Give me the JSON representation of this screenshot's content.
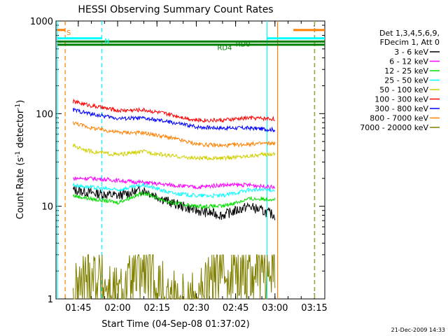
{
  "chart_data": {
    "type": "line",
    "title": "HESSI Observing Summary Count Rates",
    "xlabel": "Start Time (04-Sep-08 01:37:02)",
    "ylabel": "Count Rate (s",
    "ylabel_sup": "-1",
    "ylabel_tail": " detector",
    "ylabel_sup2": "-1",
    "ylabel_close": ")",
    "yscale": "log",
    "ylim": [
      1,
      1000
    ],
    "xlim": [
      "01:37:02",
      "03:19:00"
    ],
    "xticks": [
      "01:45",
      "02:00",
      "02:15",
      "02:30",
      "02:45",
      "03:00",
      "03:15"
    ],
    "yticks": [
      "1",
      "10",
      "100",
      "1000"
    ],
    "legend": {
      "placement": "right",
      "header": [
        "Det 1,3,4,5,6,9,",
        "FDecim 1, Att 0"
      ]
    },
    "series": [
      {
        "name": "3 - 6 keV",
        "color": "#000000",
        "x": [
          "01:43",
          "01:50",
          "02:00",
          "02:10",
          "02:20",
          "02:30",
          "02:40",
          "02:50",
          "03:00"
        ],
        "y": [
          15,
          14,
          13,
          15,
          11,
          9,
          8,
          10,
          8
        ]
      },
      {
        "name": "6 - 12 keV",
        "color": "#ff00ff",
        "x": [
          "01:43",
          "01:50",
          "02:00",
          "02:10",
          "02:20",
          "02:30",
          "02:40",
          "02:50",
          "03:00"
        ],
        "y": [
          20,
          20,
          19,
          18,
          17,
          16,
          17,
          17,
          16
        ]
      },
      {
        "name": "12 - 25 keV",
        "color": "#00e000",
        "x": [
          "01:43",
          "01:50",
          "02:00",
          "02:10",
          "02:20",
          "02:30",
          "02:40",
          "02:50",
          "03:00"
        ],
        "y": [
          13,
          12,
          11,
          14,
          11,
          10,
          10,
          12,
          12
        ]
      },
      {
        "name": "25 - 50 keV",
        "color": "#00ffff",
        "x": [
          "01:43",
          "01:50",
          "02:00",
          "02:10",
          "02:20",
          "02:30",
          "02:40",
          "02:50",
          "03:00"
        ],
        "y": [
          17,
          16,
          15,
          17,
          14,
          13,
          13,
          15,
          15
        ]
      },
      {
        "name": "50 - 100 keV",
        "color": "#d0d000",
        "x": [
          "01:43",
          "01:50",
          "02:00",
          "02:10",
          "02:20",
          "02:30",
          "02:40",
          "02:50",
          "03:00"
        ],
        "y": [
          45,
          39,
          36,
          39,
          35,
          33,
          33,
          35,
          37
        ]
      },
      {
        "name": "100 - 300 keV",
        "color": "#ff0000",
        "x": [
          "01:43",
          "01:50",
          "02:00",
          "02:10",
          "02:20",
          "02:30",
          "02:40",
          "02:50",
          "03:00"
        ],
        "y": [
          135,
          122,
          108,
          110,
          98,
          85,
          85,
          90,
          88
        ]
      },
      {
        "name": "300 - 800 keV",
        "color": "#0000ff",
        "x": [
          "01:43",
          "01:50",
          "02:00",
          "02:10",
          "02:20",
          "02:30",
          "02:40",
          "02:50",
          "03:00"
        ],
        "y": [
          110,
          99,
          89,
          89,
          81,
          72,
          70,
          70,
          67
        ]
      },
      {
        "name": "800 - 7000 keV",
        "color": "#ff8000",
        "x": [
          "01:43",
          "01:50",
          "02:00",
          "02:10",
          "02:20",
          "02:30",
          "02:40",
          "02:50",
          "03:00"
        ],
        "y": [
          80,
          70,
          63,
          62,
          55,
          47,
          45,
          47,
          48
        ]
      },
      {
        "name": "7000 - 20000 keV",
        "color": "#808000",
        "x": [
          "01:43",
          "01:50",
          "02:00",
          "02:10",
          "02:20",
          "02:30",
          "02:40",
          "02:50",
          "03:00"
        ],
        "y": [
          1,
          2,
          1,
          2,
          1,
          1,
          2,
          2,
          2
        ]
      }
    ],
    "intervals": [
      {
        "label": "S",
        "color": "#ff8000",
        "y": 800,
        "x": [
          "01:37:02",
          "01:40:00"
        ]
      },
      {
        "label": "",
        "color": "#ff8000",
        "y": 800,
        "x": [
          "03:07:00",
          "03:19:00"
        ]
      },
      {
        "label": "N",
        "color": "#00ffff",
        "y": 650,
        "x": [
          "01:37:02",
          "01:54:00"
        ]
      },
      {
        "label": "",
        "color": "#00ffff",
        "y": 650,
        "x": [
          "02:57:00",
          "03:19:00"
        ]
      },
      {
        "label": "RD0",
        "color": "#008000",
        "y": 600,
        "x": [
          "01:37:02",
          "03:19:00"
        ]
      },
      {
        "label": "RD4",
        "color": "#008000",
        "y": 555,
        "x": [
          "01:37:02",
          "03:19:00"
        ]
      }
    ],
    "vlines": [
      {
        "x": "01:40:00",
        "color": "#ff8000",
        "style": "dashed"
      },
      {
        "x": "01:54:00",
        "color": "#00ffff",
        "style": "dashed"
      },
      {
        "x": "02:57:00",
        "color": "#00ffff",
        "style": "solid"
      },
      {
        "x": "03:01:00",
        "color": "#ff8000",
        "style": "solid"
      },
      {
        "x": "03:15:00",
        "color": "#00ffff",
        "style": "dashed"
      },
      {
        "x": "03:15:10",
        "color": "#ff8000",
        "style": "dashed"
      },
      {
        "x": "01:37:02",
        "color": "#00ffff",
        "style": "solid"
      }
    ]
  },
  "stamp": "21-Dec-2009 14:33"
}
